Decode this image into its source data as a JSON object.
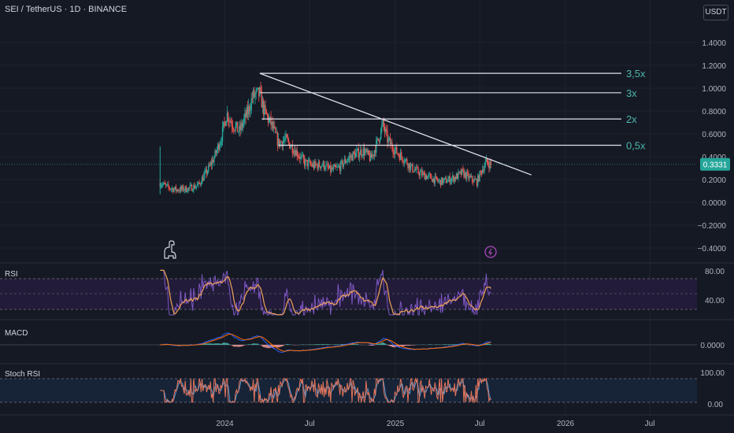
{
  "header": {
    "symbol_title": "SEI / TetherUS · 1D · BINANCE",
    "unit_button": "USDT"
  },
  "price_axis": {
    "ticks": [
      "1.4000",
      "1.2000",
      "1.0000",
      "0.8000",
      "0.6000",
      "0.4000",
      "0.2000",
      "0.0000",
      "−0.2000",
      "−0.4000"
    ],
    "current_price": "0.3331"
  },
  "time_axis": {
    "labels": [
      "2024",
      "Jul",
      "2025",
      "Jul",
      "2026",
      "Jul"
    ]
  },
  "annotations": {
    "levels": [
      "3,5x",
      "3x",
      "2x",
      "0,5x"
    ]
  },
  "panes": {
    "rsi": {
      "label": "RSI",
      "ticks": [
        "80.00",
        "40.00"
      ]
    },
    "macd": {
      "label": "MACD",
      "ticks": [
        "0.0000"
      ]
    },
    "stoch": {
      "label": "Stoch RSI",
      "ticks": [
        "100.00",
        "0.00"
      ]
    }
  },
  "colors": {
    "background": "#151924",
    "up_candle": "#26a69a",
    "down_candle": "#ef5350",
    "rsi_line": "#7e57c2",
    "rsi_ma": "#f0a35a",
    "macd_line": "#2962ff",
    "signal_line": "#ff6d00",
    "stoch_k": "#e8755a",
    "stoch_d": "#5b9bd5",
    "level_text": "#4db6ac",
    "price_badge": "#26a69a"
  },
  "chart_data": {
    "type": "candlestick",
    "symbol": "SEI / TetherUS",
    "timeframe": "1D",
    "exchange": "BINANCE",
    "x_range": [
      "2023-08",
      "2026-09"
    ],
    "y_range": [
      -0.45,
      1.5
    ],
    "series_close_path": [
      [
        "2023-08-15",
        0.17
      ],
      [
        "2023-09-01",
        0.13
      ],
      [
        "2023-09-20",
        0.11
      ],
      [
        "2023-10-15",
        0.12
      ],
      [
        "2023-11-05",
        0.15
      ],
      [
        "2023-11-25",
        0.28
      ],
      [
        "2023-12-10",
        0.4
      ],
      [
        "2023-12-25",
        0.58
      ],
      [
        "2024-01-05",
        0.78
      ],
      [
        "2024-01-15",
        0.7
      ],
      [
        "2024-02-01",
        0.62
      ],
      [
        "2024-02-20",
        0.8
      ],
      [
        "2024-03-01",
        0.93
      ],
      [
        "2024-03-16",
        0.95
      ],
      [
        "2024-03-25",
        0.8
      ],
      [
        "2024-04-10",
        0.68
      ],
      [
        "2024-04-25",
        0.52
      ],
      [
        "2024-05-10",
        0.55
      ],
      [
        "2024-06-01",
        0.45
      ],
      [
        "2024-06-20",
        0.35
      ],
      [
        "2024-07-10",
        0.32
      ],
      [
        "2024-07-30",
        0.33
      ],
      [
        "2024-08-15",
        0.28
      ],
      [
        "2024-09-01",
        0.3
      ],
      [
        "2024-09-20",
        0.38
      ],
      [
        "2024-10-05",
        0.42
      ],
      [
        "2024-10-25",
        0.45
      ],
      [
        "2024-11-10",
        0.38
      ],
      [
        "2024-11-25",
        0.55
      ],
      [
        "2024-12-05",
        0.68
      ],
      [
        "2024-12-15",
        0.55
      ],
      [
        "2025-01-01",
        0.45
      ],
      [
        "2025-01-20",
        0.38
      ],
      [
        "2025-02-05",
        0.3
      ],
      [
        "2025-02-25",
        0.25
      ],
      [
        "2025-03-15",
        0.22
      ],
      [
        "2025-04-05",
        0.18
      ],
      [
        "2025-04-20",
        0.19
      ],
      [
        "2025-05-10",
        0.22
      ],
      [
        "2025-05-25",
        0.26
      ],
      [
        "2025-06-10",
        0.21
      ],
      [
        "2025-06-25",
        0.18
      ],
      [
        "2025-07-05",
        0.28
      ],
      [
        "2025-07-15",
        0.35
      ],
      [
        "2025-07-25",
        0.33
      ]
    ],
    "trendline": {
      "from": [
        "2024-03-16",
        1.13
      ],
      "to": [
        "2025-10-20",
        0.24
      ]
    },
    "levels": [
      {
        "label": "3,5x",
        "price": 1.13,
        "from": "2024-03-16",
        "to": "2026-05-01"
      },
      {
        "label": "3x",
        "price": 0.96,
        "from": "2024-03-16",
        "to": "2026-05-01"
      },
      {
        "label": "2x",
        "price": 0.73,
        "from": "2024-03-20",
        "to": "2026-05-01"
      },
      {
        "label": "0,5x",
        "price": 0.5,
        "from": "2024-04-25",
        "to": "2026-05-01"
      }
    ],
    "current_price": 0.3331,
    "indicators": [
      "RSI",
      "MACD",
      "Stoch RSI"
    ],
    "rsi_range": [
      40,
      80
    ]
  }
}
